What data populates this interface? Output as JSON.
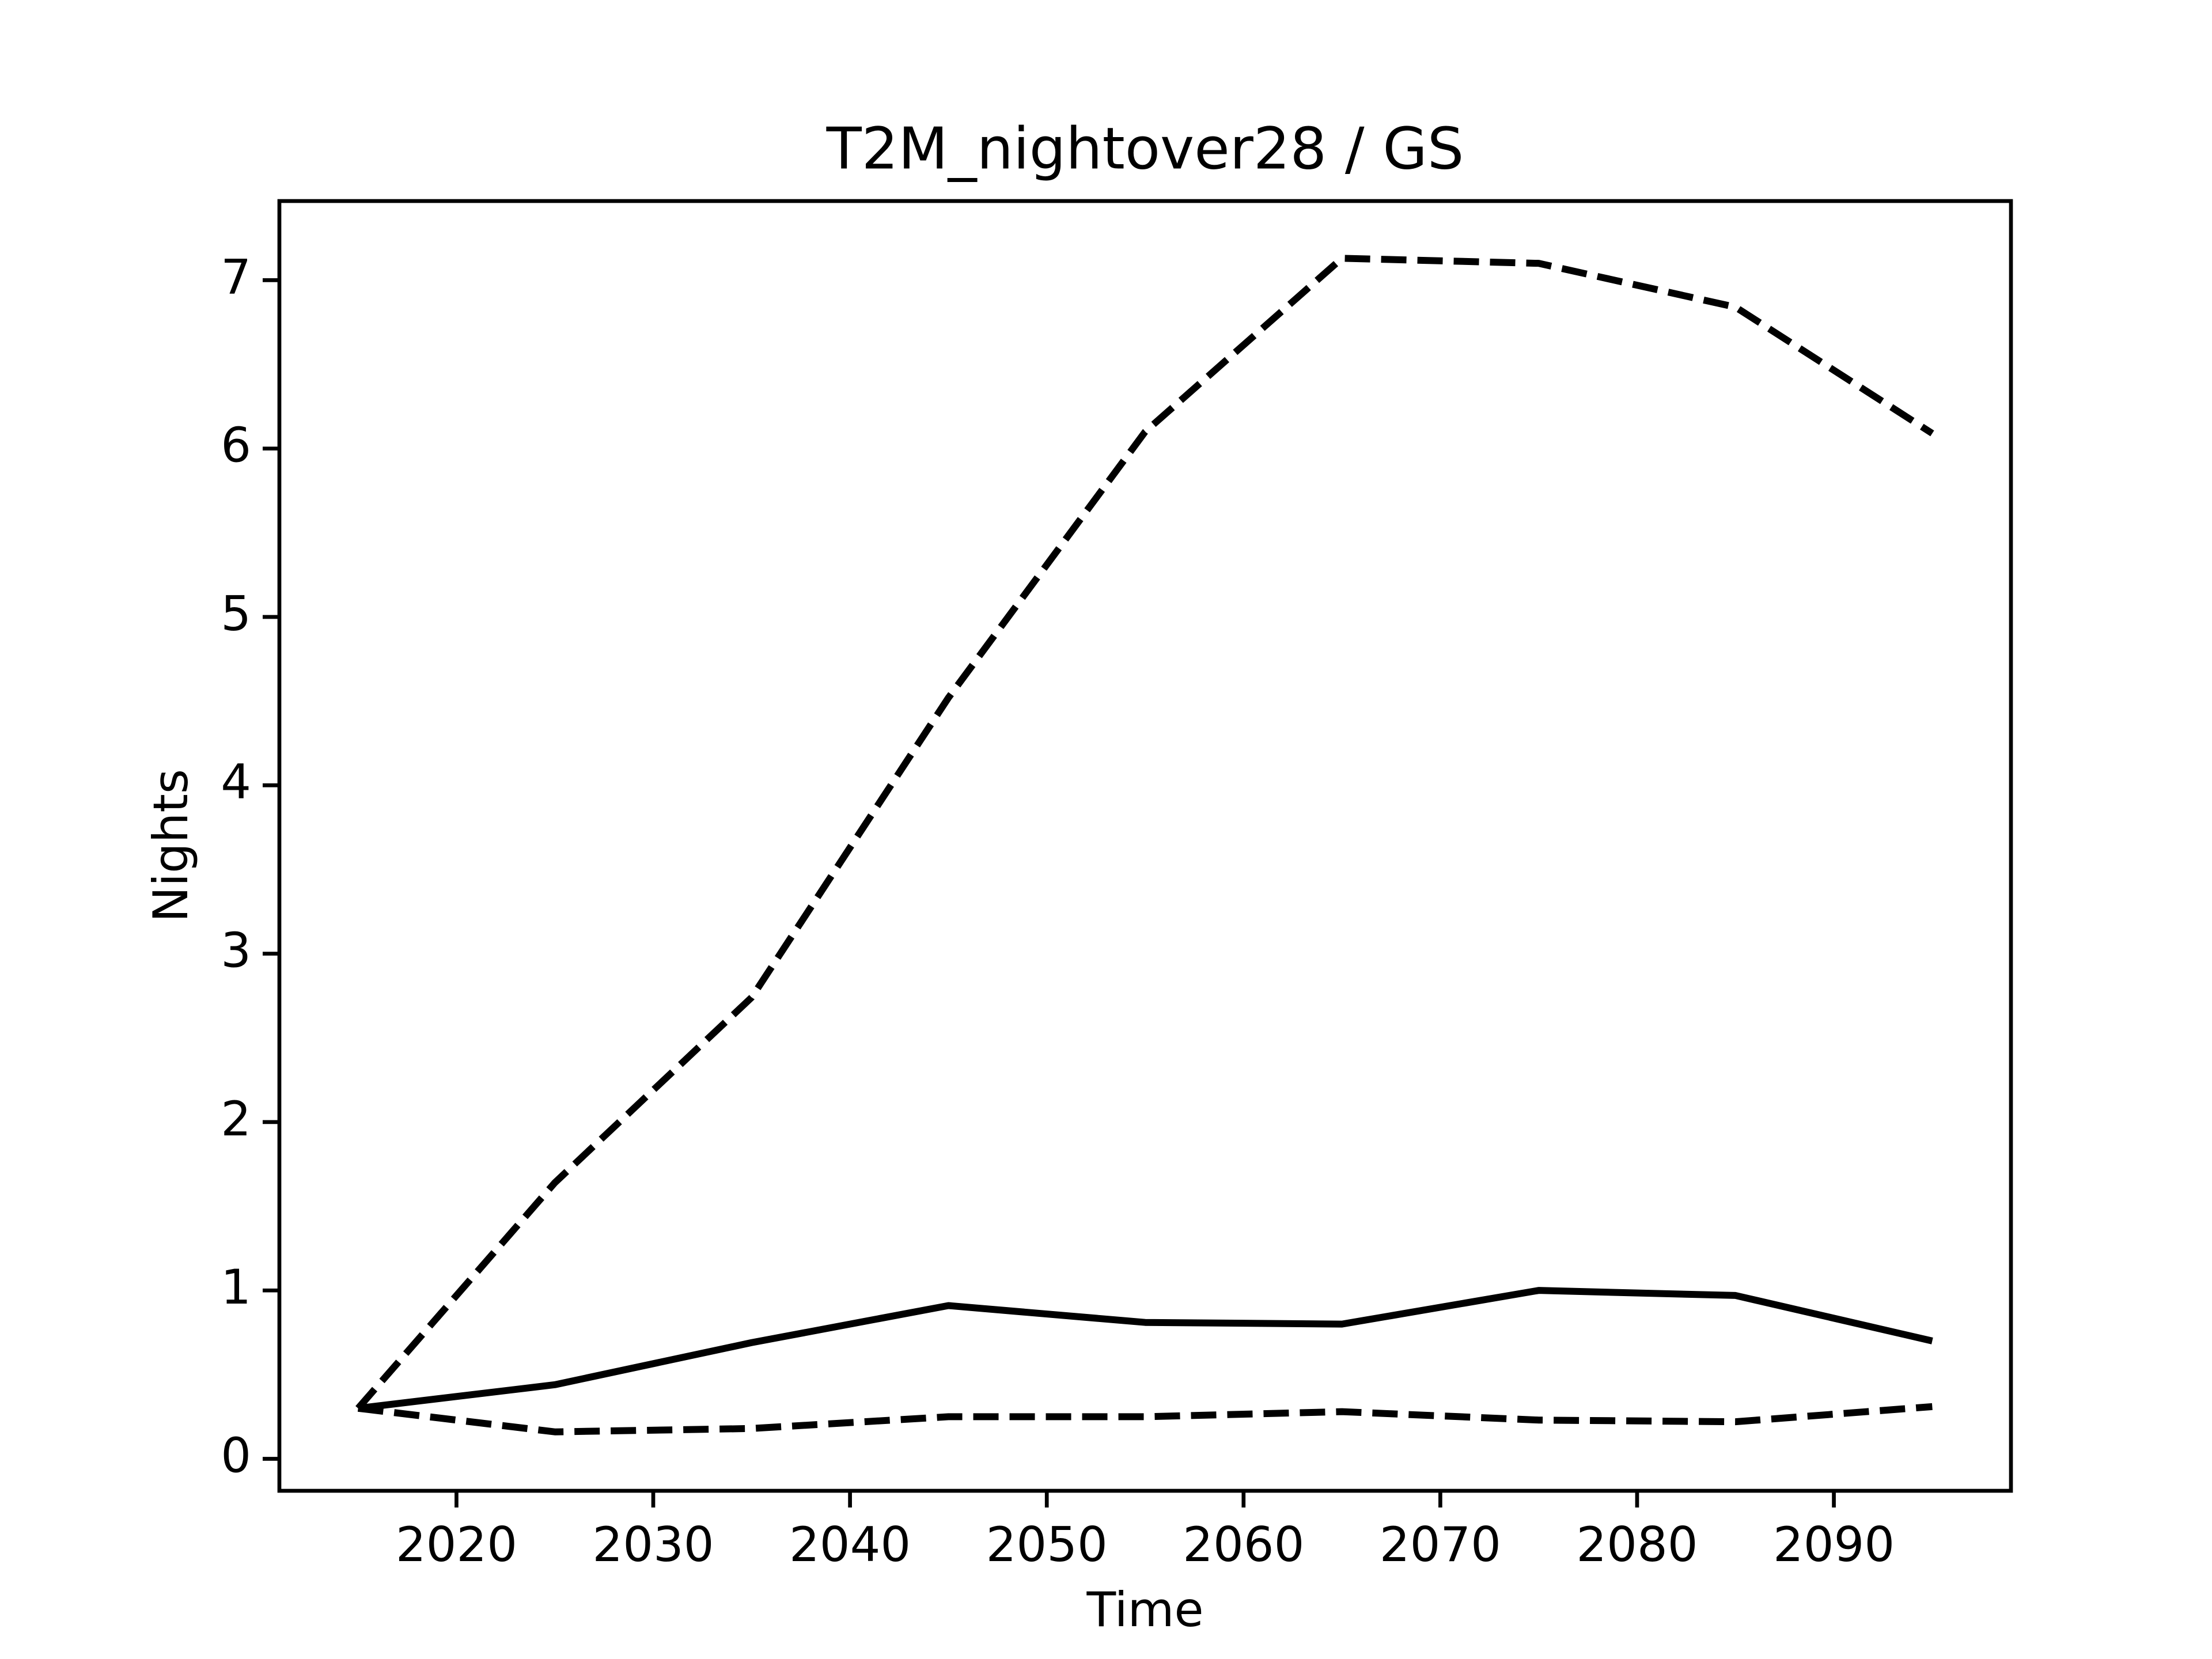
{
  "chart_data": {
    "type": "line",
    "title": "T2M_nightover28 / GS",
    "xlabel": "Time",
    "ylabel": "Nights",
    "x": [
      2015,
      2025,
      2035,
      2045,
      2055,
      2065,
      2075,
      2085,
      2095
    ],
    "series": [
      {
        "color": "#000000",
        "dashed": true,
        "values": [
          0.3,
          1.64,
          2.74,
          4.52,
          6.1,
          7.13,
          7.1,
          6.84,
          6.09
        ]
      },
      {
        "color": "#000000",
        "dashed": false,
        "values": [
          0.3,
          0.44,
          0.69,
          0.91,
          0.81,
          0.8,
          1.0,
          0.97,
          0.7
        ]
      },
      {
        "color": "#000000",
        "dashed": true,
        "values": [
          0.3,
          0.16,
          0.18,
          0.25,
          0.25,
          0.28,
          0.23,
          0.22,
          0.31
        ]
      }
    ],
    "xlim": [
      2011,
      2099
    ],
    "xticks": [
      2020,
      2030,
      2040,
      2050,
      2060,
      2070,
      2080,
      2090
    ],
    "ylim": [
      -0.19,
      7.47
    ],
    "yticks": [
      0,
      1,
      2,
      3,
      4,
      5,
      6,
      7
    ],
    "grid": false
  }
}
